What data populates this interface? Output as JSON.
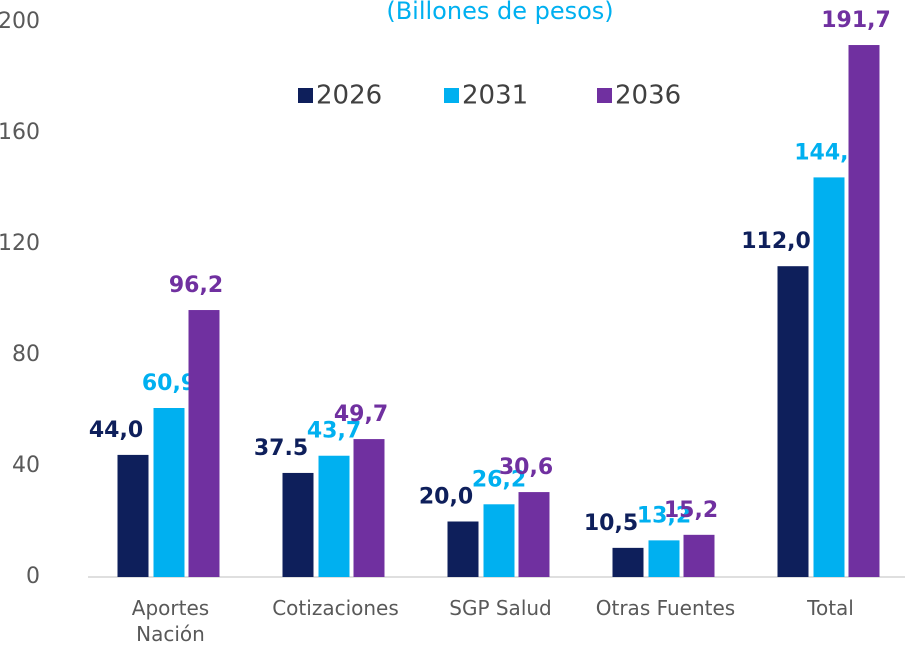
{
  "chart_data": {
    "type": "bar",
    "subtitle": "(Billones de pesos)",
    "categories": [
      "Aportes\nNación",
      "Cotizaciones",
      "SGP Salud",
      "Otras Fuentes",
      "Total"
    ],
    "series": [
      {
        "name": "2026",
        "color": "#0e1f5b",
        "values": [
          44.0,
          37.5,
          20.0,
          10.5,
          112.0
        ],
        "value_labels": [
          "44,0",
          "37.5",
          "20,0",
          "10,5",
          "112,0"
        ]
      },
      {
        "name": "2031",
        "color": "#00b0f0",
        "values": [
          60.9,
          43.7,
          26.2,
          13.2,
          144.0
        ],
        "value_labels": [
          "60,9",
          "43,7",
          "26,2",
          "13,2",
          "144,0"
        ]
      },
      {
        "name": "2036",
        "color": "#7030a0",
        "values": [
          96.2,
          49.7,
          30.6,
          15.2,
          191.7
        ],
        "value_labels": [
          "96,2",
          "49,7",
          "30,6",
          "15,2",
          "191,7"
        ]
      }
    ],
    "ylim": [
      0,
      200
    ],
    "yticks": [
      0,
      40,
      80,
      120,
      160,
      200
    ],
    "grid": false,
    "legend": "top"
  }
}
